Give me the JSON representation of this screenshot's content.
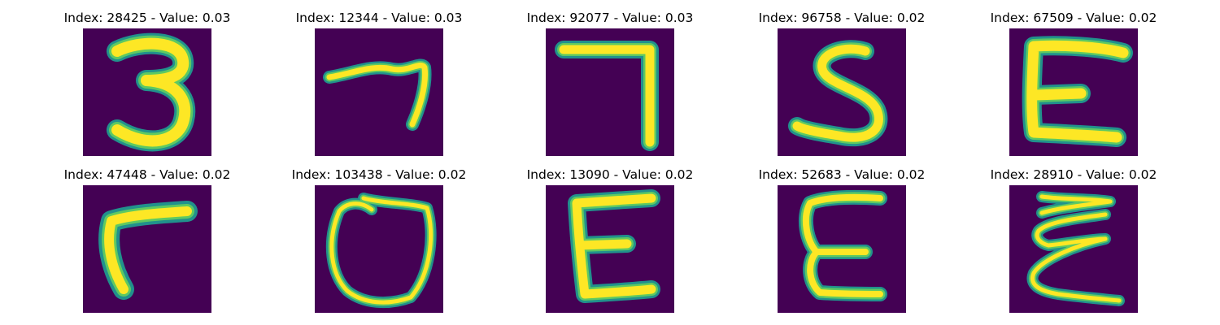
{
  "colors": {
    "background": "#440154",
    "stroke_edge": "#21918c",
    "stroke_mid": "#5ec962",
    "stroke_core": "#fde725"
  },
  "panels": [
    {
      "title": "Index: 28425 - Value: 0.03",
      "glyph": "digit-three"
    },
    {
      "title": "Index: 12344 - Value: 0.03",
      "glyph": "digit-seven-slanted"
    },
    {
      "title": "Index: 92077 - Value: 0.03",
      "glyph": "digit-seven"
    },
    {
      "title": "Index: 96758 - Value: 0.02",
      "glyph": "digit-five"
    },
    {
      "title": "Index: 67509 - Value: 0.02",
      "glyph": "letter-e"
    },
    {
      "title": "Index: 47448 - Value: 0.02",
      "glyph": "letter-r"
    },
    {
      "title": "Index: 103438 - Value: 0.02",
      "glyph": "letter-o"
    },
    {
      "title": "Index: 13090 - Value: 0.02",
      "glyph": "letter-e"
    },
    {
      "title": "Index: 52683 - Value: 0.02",
      "glyph": "letter-e"
    },
    {
      "title": "Index: 28910 - Value: 0.02",
      "glyph": "letter-e"
    }
  ]
}
